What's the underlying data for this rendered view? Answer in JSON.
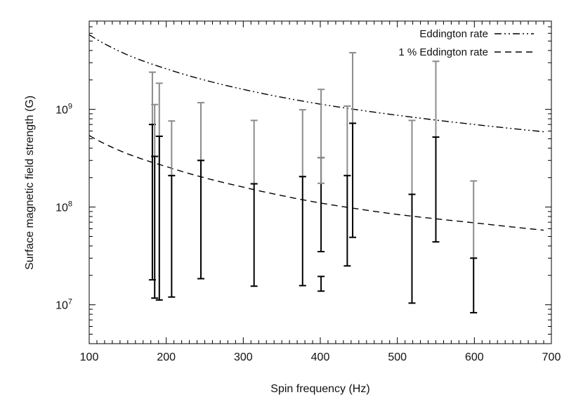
{
  "chart_data": {
    "type": "scatter",
    "title": "",
    "xlabel": "Spin frequency (Hz)",
    "ylabel": "Surface magnetic field strength (G)",
    "xlim": [
      100,
      700
    ],
    "ylim": [
      4000000,
      8000000000
    ],
    "yscale": "log",
    "grid": false,
    "legend_position": "top-right",
    "x_ticks": [
      100,
      200,
      300,
      400,
      500,
      600,
      700
    ],
    "y_ticks": [
      {
        "value": 10000000,
        "base": "10",
        "exp": "7"
      },
      {
        "value": 100000000,
        "base": "10",
        "exp": "8"
      },
      {
        "value": 1000000000,
        "base": "10",
        "exp": "9"
      }
    ],
    "legend": [
      {
        "name": "Eddington rate",
        "style": "dash-dot-dot",
        "color": "#000000"
      },
      {
        "name": "1 % Eddington rate",
        "style": "dashed",
        "color": "#000000"
      }
    ],
    "curves": [
      {
        "name": "Eddington rate",
        "points": [
          [
            100,
            5800000000.0
          ],
          [
            150,
            3600000000.0
          ],
          [
            200,
            2600000000.0
          ],
          [
            300,
            1600000000.0
          ],
          [
            400,
            1130000000.0
          ],
          [
            500,
            870000000.0
          ],
          [
            600,
            700000000.0
          ],
          [
            690,
            590000000.0
          ]
        ]
      },
      {
        "name": "1 % Eddington rate",
        "points": [
          [
            100,
            540000000.0
          ],
          [
            150,
            350000000.0
          ],
          [
            200,
            260000000.0
          ],
          [
            300,
            160000000.0
          ],
          [
            400,
            110000000.0
          ],
          [
            500,
            84000000.0
          ],
          [
            600,
            69000000.0
          ],
          [
            690,
            58000000.0
          ]
        ]
      }
    ],
    "error_bars": {
      "gray_color": "#8c8c8c",
      "black_color": "#000000",
      "bars": [
        {
          "x": 182,
          "gray": [
            700000000.0,
            2400000000.0
          ],
          "black": [
            18000000.0,
            700000000.0
          ]
        },
        {
          "x": 185,
          "gray": [
            330000000.0,
            1120000000.0
          ],
          "black": [
            11700000.0,
            330000000.0
          ]
        },
        {
          "x": 191,
          "gray": [
            530000000.0,
            1850000000.0
          ],
          "black": [
            11200000.0,
            530000000.0
          ]
        },
        {
          "x": 207,
          "gray": [
            210000000.0,
            760000000.0
          ],
          "black": [
            12000000.0,
            210000000.0
          ]
        },
        {
          "x": 245,
          "gray": [
            300000000.0,
            1170000000.0
          ],
          "black": [
            18500000.0,
            300000000.0
          ]
        },
        {
          "x": 314,
          "gray": [
            173000000.0,
            770000000.0
          ],
          "black": [
            15500000.0,
            173000000.0
          ]
        },
        {
          "x": 377,
          "gray": [
            205000000.0,
            990000000.0
          ],
          "black": [
            15700000.0,
            205000000.0
          ]
        },
        {
          "x": 401,
          "gray": [
            320000000.0,
            1600000000.0
          ],
          "black": [
            35000000.0,
            320000000.0
          ]
        },
        {
          "x": 401,
          "gray": [
            175000000.0,
            320000000.0
          ],
          "black": [
            13800000.0,
            19500000.0
          ]
        },
        {
          "x": 435,
          "gray": [
            210000000.0,
            1080000000.0
          ],
          "black": [
            25000000.0,
            210000000.0
          ]
        },
        {
          "x": 442,
          "gray": [
            720000000.0,
            3800000000.0
          ],
          "black": [
            49000000.0,
            720000000.0
          ]
        },
        {
          "x": 519,
          "gray": [
            135000000.0,
            770000000.0
          ],
          "black": [
            10400000.0,
            135000000.0
          ]
        },
        {
          "x": 550,
          "gray": [
            520000000.0,
            3100000000.0
          ],
          "black": [
            44000000.0,
            520000000.0
          ]
        },
        {
          "x": 599,
          "gray": [
            30000000.0,
            185000000.0
          ],
          "black": [
            8300000.0,
            30000000.0
          ]
        }
      ]
    }
  }
}
